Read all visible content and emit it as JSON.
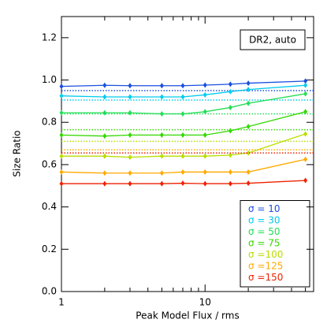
{
  "chart_data": {
    "type": "line",
    "x_label": "Peak Model Flux / rms",
    "y_label": "Size Ratio",
    "annotation": "DR2, auto",
    "x": [
      1,
      2,
      3,
      5,
      7,
      10,
      15,
      20,
      50
    ],
    "xlim": [
      1,
      57
    ],
    "xscale": "log",
    "xticks": [
      1,
      10
    ],
    "xminorticks": [
      2,
      3,
      4,
      5,
      6,
      7,
      8,
      9,
      20,
      30,
      40,
      50
    ],
    "ylim": [
      0,
      1.3
    ],
    "yticks": [
      {
        "value": 0,
        "label": "0.0"
      },
      {
        "value": 0.2,
        "label": "0.2"
      },
      {
        "value": 0.4,
        "label": "0.4"
      },
      {
        "value": 0.6,
        "label": "0.6"
      },
      {
        "value": 0.8,
        "label": "0.8"
      },
      {
        "value": 1.0,
        "label": "1.0"
      },
      {
        "value": 1.2,
        "label": "1.2"
      }
    ],
    "legend": "lower right",
    "series": [
      {
        "name": "σ = 10",
        "color": "#1a4fe0",
        "values": [
          0.97,
          0.975,
          0.973,
          0.973,
          0.973,
          0.976,
          0.98,
          0.985,
          0.995
        ],
        "reference": 0.95
      },
      {
        "name": "σ = 30",
        "color": "#00ccee",
        "values": [
          0.925,
          0.92,
          0.92,
          0.92,
          0.92,
          0.93,
          0.945,
          0.955,
          0.975
        ],
        "reference": 0.905
      },
      {
        "name": "σ = 50",
        "color": "#22dd55",
        "values": [
          0.845,
          0.845,
          0.845,
          0.84,
          0.84,
          0.85,
          0.87,
          0.89,
          0.935
        ],
        "reference": 0.84
      },
      {
        "name": "σ = 75",
        "color": "#33d800",
        "values": [
          0.74,
          0.735,
          0.74,
          0.74,
          0.74,
          0.74,
          0.76,
          0.78,
          0.85
        ],
        "reference": 0.765
      },
      {
        "name": "σ =100",
        "color": "#b8dd00",
        "values": [
          0.64,
          0.64,
          0.635,
          0.64,
          0.64,
          0.64,
          0.645,
          0.655,
          0.745
        ],
        "reference": 0.71
      },
      {
        "name": "σ =125",
        "color": "#ffaa00",
        "values": [
          0.565,
          0.56,
          0.56,
          0.56,
          0.565,
          0.565,
          0.565,
          0.565,
          0.625
        ],
        "reference": 0.67
      },
      {
        "name": "σ =150",
        "color": "#ee2200",
        "values": [
          0.51,
          0.51,
          0.51,
          0.51,
          0.512,
          0.51,
          0.51,
          0.512,
          0.525
        ],
        "reference": 0.655
      }
    ]
  }
}
